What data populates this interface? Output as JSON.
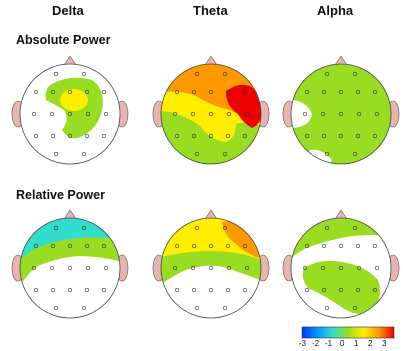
{
  "columns": [
    "Delta",
    "Theta",
    "Alpha"
  ],
  "rows": [
    "Absolute Power",
    "Relative Power"
  ],
  "scale": {
    "ticks": [
      "-3",
      "-2",
      "-1",
      "0",
      "1",
      "2",
      "3"
    ],
    "colors": [
      "#0033ff",
      "#0099ff",
      "#33ddcc",
      "#99dd22",
      "#ffee00",
      "#ff9900",
      "#ee0000"
    ]
  },
  "maps": [
    {
      "row": 0,
      "col": 0,
      "band": "Delta",
      "measure": "Absolute Power"
    },
    {
      "row": 0,
      "col": 1,
      "band": "Theta",
      "measure": "Absolute Power"
    },
    {
      "row": 0,
      "col": 2,
      "band": "Alpha",
      "measure": "Absolute Power"
    },
    {
      "row": 1,
      "col": 0,
      "band": "Delta",
      "measure": "Relative Power"
    },
    {
      "row": 1,
      "col": 1,
      "band": "Theta",
      "measure": "Relative Power"
    },
    {
      "row": 1,
      "col": 2,
      "band": "Alpha",
      "measure": "Relative Power"
    }
  ]
}
